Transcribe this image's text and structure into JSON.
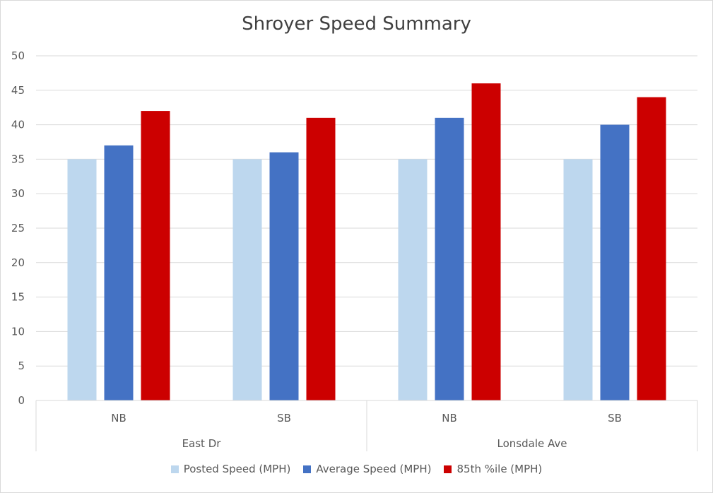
{
  "chart_data": {
    "type": "bar",
    "title": "Shroyer Speed Summary",
    "xlabel": "",
    "ylabel": "",
    "ylim": [
      0,
      50
    ],
    "yticks": [
      0,
      5,
      10,
      15,
      20,
      25,
      30,
      35,
      40,
      45,
      50
    ],
    "grid": true,
    "legend_position": "bottom",
    "groups": [
      {
        "label": "East Dr",
        "categories": [
          "NB",
          "SB"
        ]
      },
      {
        "label": "Lonsdale Ave",
        "categories": [
          "NB",
          "SB"
        ]
      }
    ],
    "categories": [
      "NB",
      "SB",
      "NB",
      "SB"
    ],
    "series": [
      {
        "name": "Posted Speed (MPH)",
        "color": "#bdd7ee",
        "values": [
          35,
          35,
          35,
          35
        ]
      },
      {
        "name": "Average Speed (MPH)",
        "color": "#4472c4",
        "values": [
          37,
          36,
          41,
          40
        ]
      },
      {
        "name": "85th %ile (MPH)",
        "color": "#cc0000",
        "values": [
          42,
          41,
          46,
          44
        ]
      }
    ]
  }
}
